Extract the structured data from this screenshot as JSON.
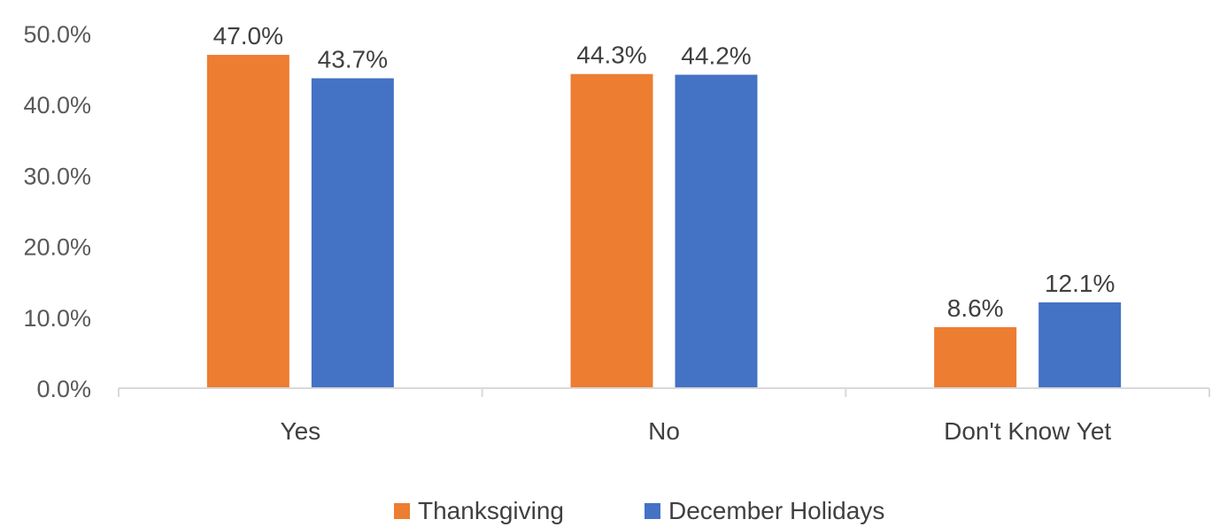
{
  "chart_data": {
    "type": "bar",
    "categories": [
      "Yes",
      "No",
      "Don't Know Yet"
    ],
    "series": [
      {
        "name": "Thanksgiving",
        "values": [
          47.0,
          44.3,
          8.6
        ],
        "labels": [
          "47.0%",
          "44.3%",
          "8.6%"
        ],
        "color": "#ED7D31"
      },
      {
        "name": "December Holidays",
        "values": [
          43.7,
          44.2,
          12.1
        ],
        "labels": [
          "43.7%",
          "44.2%",
          "12.1%"
        ],
        "color": "#4472C4"
      }
    ],
    "yticks": [
      "0.0%",
      "10.0%",
      "20.0%",
      "30.0%",
      "40.0%",
      "50.0%"
    ],
    "ylim": [
      0,
      50
    ],
    "grid": false,
    "legend_position": "bottom"
  }
}
